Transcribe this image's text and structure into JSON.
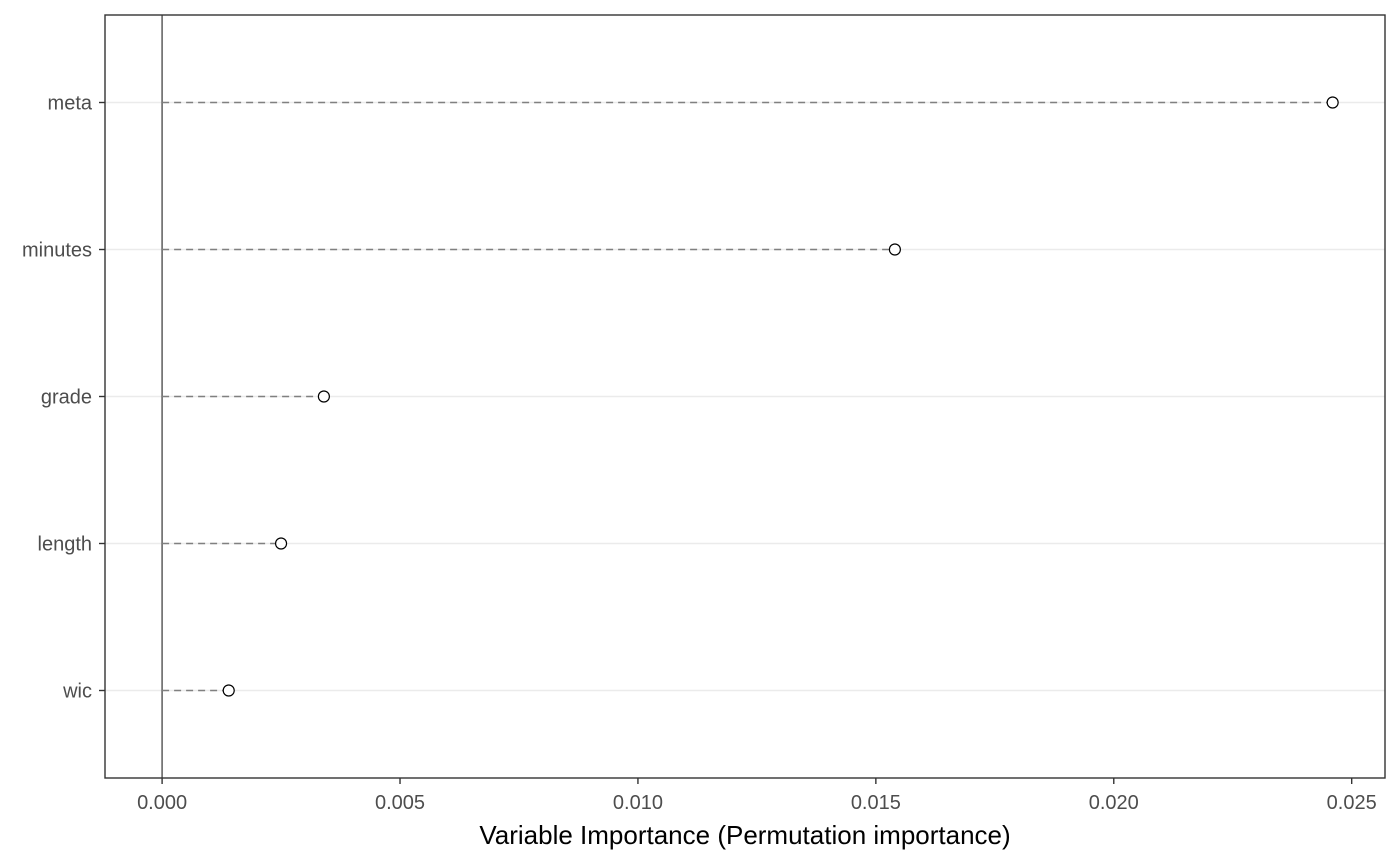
{
  "chart_data": {
    "type": "dot",
    "xlabel": "Variable Importance (Permutation importance)",
    "ylabel": "",
    "title": "",
    "xlim": [
      -0.0012,
      0.0257
    ],
    "x_ticks": [
      "0.000",
      "0.005",
      "0.010",
      "0.015",
      "0.020",
      "0.025"
    ],
    "x_tick_values": [
      0,
      0.005,
      0.01,
      0.015,
      0.02,
      0.025
    ],
    "categories": [
      "meta",
      "minutes",
      "grade",
      "length",
      "wic"
    ],
    "values": [
      0.0246,
      0.0154,
      0.0034,
      0.0025,
      0.0014
    ],
    "reference_line_x": 0,
    "grid": "horizontal-major",
    "legend": "none",
    "colors": {
      "grid": "#ebebeb",
      "panel_border": "#333333",
      "reference_line": "#666666",
      "segment": "#808080",
      "point_stroke": "#000000",
      "tick_label": "#4d4d4d"
    }
  }
}
